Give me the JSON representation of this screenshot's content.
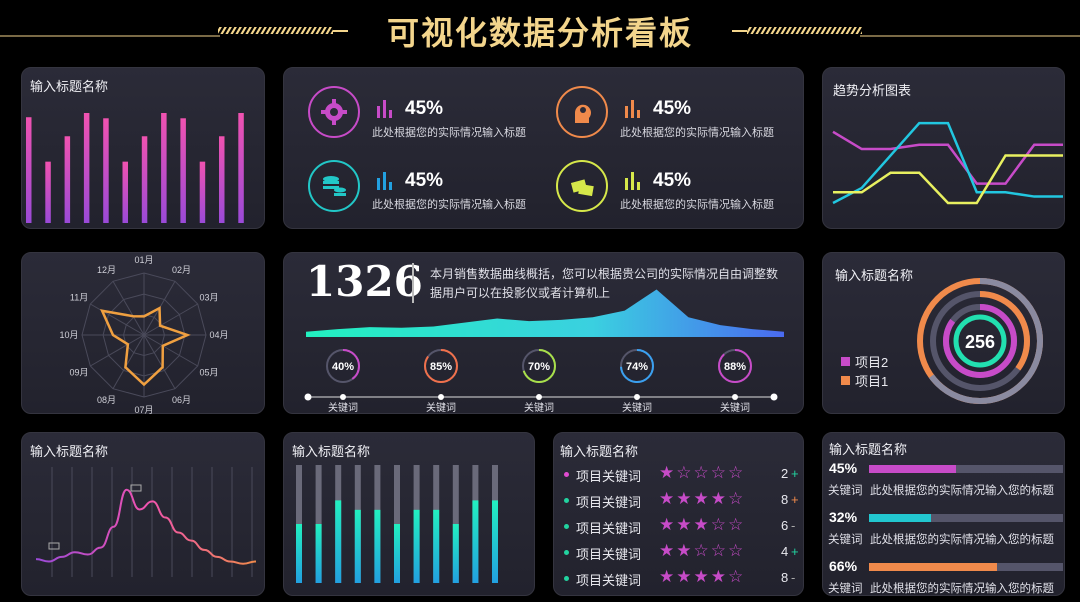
{
  "header": {
    "title": "可视化数据分析看板"
  },
  "panels": {
    "p1": {
      "title": "输入标题名称"
    },
    "p3": {
      "title": "趋势分析图表"
    },
    "p6": {
      "title": "输入标题名称"
    },
    "p7": {
      "title": "输入标题名称"
    },
    "p8": {
      "title": "输入标题名称"
    },
    "p9": {
      "title": "输入标题名称"
    },
    "p10": {
      "title": "输入标题名称"
    }
  },
  "stats": [
    {
      "value": "45%",
      "label": "此处根据您的实际情况输入标题",
      "icon": "gear-icon",
      "color": "#c74bc8"
    },
    {
      "value": "45%",
      "label": "此处根据您的实际情况输入标题",
      "icon": "brain-gear-icon",
      "color": "#f08a4b"
    },
    {
      "value": "45%",
      "label": "此处根据您的实际情况输入标题",
      "icon": "coins-icon",
      "color": "#22c7c7"
    },
    {
      "value": "45%",
      "label": "此处根据您的实际情况输入标题",
      "icon": "money-icon",
      "color": "#d6e84a"
    }
  ],
  "sales": {
    "number": "1326",
    "description": "本月销售数据曲线概括，您可以根据贵公司的实际情况自由调整数据用户可以在投影仪或者计算机上",
    "keywords": [
      {
        "pct": "40%",
        "value": 40,
        "label": "关键词",
        "color": "#c74bc8"
      },
      {
        "pct": "85%",
        "value": 85,
        "label": "关键词",
        "color": "#f0704b"
      },
      {
        "pct": "70%",
        "value": 70,
        "label": "关键词",
        "color": "#a8e04a"
      },
      {
        "pct": "74%",
        "value": 74,
        "label": "关键词",
        "color": "#3aa0f0"
      },
      {
        "pct": "88%",
        "value": 88,
        "label": "关键词",
        "color": "#c74bc8"
      }
    ]
  },
  "donut": {
    "center_value": "256",
    "legend": [
      {
        "label": "项目2",
        "color": "#c74bc8"
      },
      {
        "label": "项目1",
        "color": "#f08a4b"
      }
    ]
  },
  "ratings": [
    {
      "label": "项目关键词",
      "stars": 1,
      "value": "2",
      "sign": "+",
      "sign_color": "#22d3a0",
      "dot_color": "#e04bd0"
    },
    {
      "label": "项目关键词",
      "stars": 4,
      "value": "8",
      "sign": "+",
      "sign_color": "#f08a4b",
      "dot_color": "#22d3a0"
    },
    {
      "label": "项目关键词",
      "stars": 3,
      "value": "6",
      "sign": "-",
      "sign_color": "#aaaaaa",
      "dot_color": "#22d3a0"
    },
    {
      "label": "项目关键词",
      "stars": 2,
      "value": "4",
      "sign": "+",
      "sign_color": "#22d3a0",
      "dot_color": "#22d3a0"
    },
    {
      "label": "项目关键词",
      "stars": 4,
      "value": "8",
      "sign": "-",
      "sign_color": "#aaaaaa",
      "dot_color": "#22d3a0"
    }
  ],
  "progress": [
    {
      "pct": "45%",
      "value": 45,
      "keyword": "关键词",
      "label": "此处根据您的实际情况输入您的标题",
      "color": "#c74bc8"
    },
    {
      "pct": "32%",
      "value": 32,
      "keyword": "关键词",
      "label": "此处根据您的实际情况输入您的标题",
      "color": "#22c7d0"
    },
    {
      "pct": "66%",
      "value": 66,
      "keyword": "关键词",
      "label": "此处根据您的实际情况输入您的标题",
      "color": "#f08a4b"
    }
  ],
  "chart_data": [
    {
      "type": "bar",
      "title": "输入标题名称",
      "values": [
        100,
        58,
        82,
        104,
        99,
        58,
        82,
        104,
        99,
        58,
        82,
        104
      ]
    },
    {
      "type": "line",
      "title": "趋势分析图表",
      "series": [
        {
          "color": "#c74bc8",
          "values": [
            78,
            62,
            62,
            66,
            66,
            30,
            30,
            66,
            66
          ]
        },
        {
          "color": "#22c7e0",
          "values": [
            12,
            26,
            56,
            86,
            86,
            22,
            22,
            18,
            18
          ]
        },
        {
          "color": "#e8f060",
          "values": [
            22,
            22,
            40,
            40,
            12,
            12,
            56,
            56,
            56
          ]
        }
      ],
      "ylim": [
        0,
        100
      ]
    },
    {
      "type": "radar",
      "categories": [
        "01月",
        "02月",
        "03月",
        "04月",
        "05月",
        "06月",
        "07月",
        "08月",
        "09月",
        "10月",
        "11月",
        "12月"
      ],
      "values": [
        30,
        50,
        30,
        70,
        35,
        60,
        80,
        60,
        30,
        50,
        78,
        35
      ],
      "max": 100
    },
    {
      "type": "area",
      "values": [
        8,
        12,
        15,
        14,
        16,
        22,
        28,
        24,
        26,
        30,
        40,
        72,
        30,
        18,
        12,
        8
      ],
      "ylim": [
        0,
        80
      ]
    },
    {
      "type": "line",
      "title": "输入标题名称",
      "values": [
        12,
        10,
        14,
        18,
        16,
        22,
        40,
        72,
        55,
        62,
        48,
        35,
        28,
        20,
        14,
        10,
        8,
        10
      ],
      "ylim": [
        0,
        90
      ]
    },
    {
      "type": "bar",
      "title": "输入标题名称",
      "values": [
        50,
        50,
        70,
        62,
        62,
        50,
        62,
        62,
        50,
        70,
        70,
        43,
        62,
        62,
        50,
        70
      ]
    },
    {
      "type": "pie",
      "title": "输入标题名称",
      "values": [
        {
          "name": "outer-gray",
          "value": 65,
          "color": "#8a8aa0"
        },
        {
          "name": "项目1",
          "value": 35,
          "color": "#f08a4b"
        },
        {
          "name": "项目2",
          "value": 85,
          "color": "#c74bc8"
        }
      ]
    }
  ]
}
